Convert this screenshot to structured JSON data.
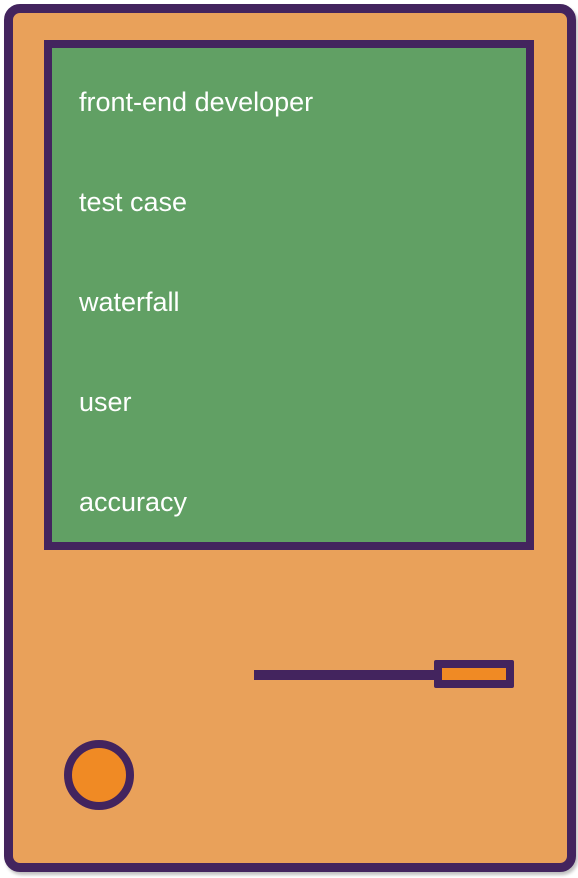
{
  "screen": {
    "items": [
      {
        "label": "front-end developer"
      },
      {
        "label": "test case"
      },
      {
        "label": "waterfall"
      },
      {
        "label": "user"
      },
      {
        "label": "accuracy"
      }
    ]
  },
  "colors": {
    "casing": "#E9A15A",
    "outline": "#43245E",
    "screen": "#61A064",
    "accent": "#F08A24",
    "text": "#FFFFFF"
  }
}
